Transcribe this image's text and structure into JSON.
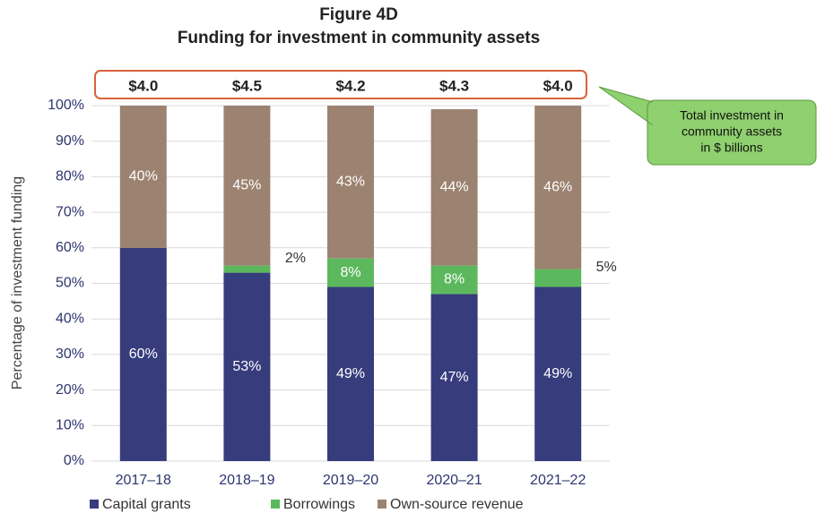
{
  "chart_data": {
    "type": "stacked_bar",
    "title": "Figure 4D",
    "subtitle": "Funding for investment in community assets",
    "y_label": "Percentage of investment funding",
    "categories": [
      "2017–18",
      "2018–19",
      "2019–20",
      "2020–21",
      "2021–22"
    ],
    "series": [
      {
        "name": "Capital grants",
        "color": "#363c7c",
        "values": [
          60,
          53,
          49,
          47,
          49
        ],
        "value_labels": [
          "60%",
          "53%",
          "49%",
          "47%",
          "49%"
        ]
      },
      {
        "name": "Borrowings",
        "color": "#5cb85c",
        "values": [
          0,
          2,
          8,
          8,
          5
        ],
        "value_labels": [
          null,
          "2%",
          "8%",
          "8%",
          "5%"
        ]
      },
      {
        "name": "Own-source revenue",
        "color": "#9c8270",
        "values": [
          40,
          45,
          43,
          44,
          46
        ],
        "value_labels": [
          "40%",
          "45%",
          "43%",
          "44%",
          "46%"
        ]
      }
    ],
    "totals": {
      "values": [
        4.0,
        4.5,
        4.2,
        4.3,
        4.0
      ],
      "value_labels": [
        "$4.0",
        "$4.5",
        "$4.2",
        "$4.3",
        "$4.0"
      ]
    },
    "annotation": [
      "Total investment in",
      "community assets",
      "in $ billions"
    ],
    "ylim": [
      0,
      100
    ],
    "yticks": [
      {
        "value": 0,
        "label": "0%"
      },
      {
        "value": 10,
        "label": "10%"
      },
      {
        "value": 20,
        "label": "20%"
      },
      {
        "value": 30,
        "label": "30%"
      },
      {
        "value": 40,
        "label": "40%"
      },
      {
        "value": 50,
        "label": "50%"
      },
      {
        "value": 60,
        "label": "60%"
      },
      {
        "value": 70,
        "label": "70%"
      },
      {
        "value": 80,
        "label": "80%"
      },
      {
        "value": 90,
        "label": "90%"
      },
      {
        "value": 100,
        "label": "100%"
      }
    ],
    "grid": true,
    "legend": "bottom"
  }
}
